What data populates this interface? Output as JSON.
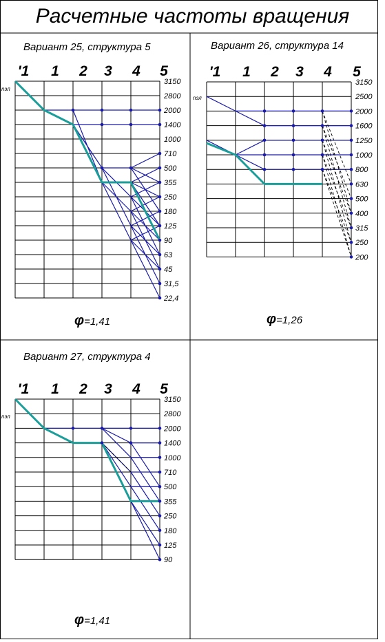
{
  "title": "Расчетные частоты вращения",
  "diagrams": [
    {
      "caption": "Вариант 25, структура 5",
      "phi_label": "1,41",
      "shaft_labels": [
        "'1",
        "1",
        "2",
        "3",
        "4",
        "5"
      ],
      "speed_axis_label": "nэл",
      "speeds": [
        "3150",
        "2800",
        "2000",
        "1400",
        "1000",
        "710",
        "500",
        "355",
        "250",
        "180",
        "125",
        "90",
        "63",
        "45",
        "31,5",
        "22,4"
      ]
    },
    {
      "caption": "Вариант 26, структура 14",
      "phi_label": "1,26",
      "shaft_labels": [
        "'1",
        "1",
        "2",
        "3",
        "4",
        "5"
      ],
      "speed_axis_label": "nэл",
      "speeds": [
        "3150",
        "2500",
        "2000",
        "1600",
        "1250",
        "1000",
        "800",
        "630",
        "500",
        "400",
        "315",
        "250",
        "200"
      ]
    },
    {
      "caption": "Вариант 27, структура 4",
      "phi_label": "1,41",
      "shaft_labels": [
        "'1",
        "1",
        "2",
        "3",
        "4",
        "5"
      ],
      "speed_axis_label": "nэл",
      "speeds": [
        "3150",
        "2800",
        "2000",
        "1400",
        "1000",
        "710",
        "500",
        "355",
        "250",
        "180",
        "125",
        "90"
      ]
    }
  ],
  "colors": {
    "line": "#1a1aa8",
    "path": "#1b9e9a",
    "grid": "#000000",
    "frame": "#000000"
  }
}
